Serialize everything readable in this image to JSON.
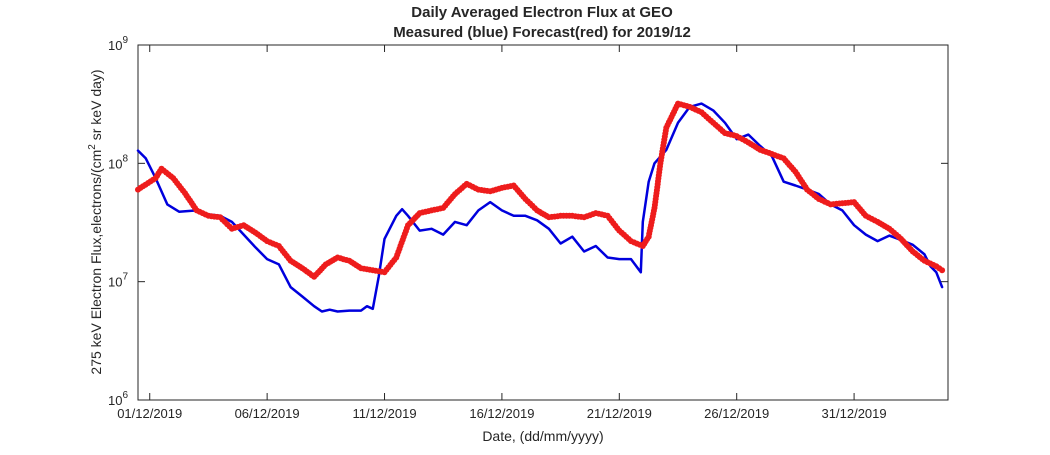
{
  "chart_data": {
    "type": "line",
    "title": "Daily Averaged Electron Flux at GEO",
    "subtitle": "Measured (blue) Forecast(red) for 2019/12",
    "xlabel": "Date, (dd/mm/yyyy)",
    "ylabel": "275 keV Electron Flux,electrons/(cm",
    "ylabel_sup": "2",
    "ylabel_tail": " sr keV day)",
    "xlim": [
      "2019-11-30T12:00",
      "2020-01-04T00:00"
    ],
    "ylim": [
      1000000,
      1000000000
    ],
    "yscale": "log",
    "grid": false,
    "x_ticks": [
      "2019-12-01",
      "2019-12-06",
      "2019-12-11",
      "2019-12-16",
      "2019-12-21",
      "2019-12-26",
      "2019-12-31"
    ],
    "x_tick_labels": [
      "01/12/2019",
      "06/12/2019",
      "11/12/2019",
      "16/12/2019",
      "21/12/2019",
      "26/12/2019",
      "31/12/2019"
    ],
    "y_ticks": [
      1000000,
      10000000,
      100000000,
      1000000000
    ],
    "y_tick_labels": [
      {
        "base": "10",
        "exp": "6"
      },
      {
        "base": "10",
        "exp": "7"
      },
      {
        "base": "10",
        "exp": "8"
      },
      {
        "base": "10",
        "exp": "9"
      }
    ],
    "series": [
      {
        "color": "#0000dd",
        "style": "line",
        "points": [
          [
            "2019-11-30T12:00",
            128000000
          ],
          [
            "2019-11-30T20:00",
            110000000
          ],
          [
            "2019-12-01T06:00",
            75000000
          ],
          [
            "2019-12-01T18:00",
            45000000
          ],
          [
            "2019-12-02T06:00",
            39000000
          ],
          [
            "2019-12-03T00:00",
            40000000
          ],
          [
            "2019-12-03T12:00",
            37000000
          ],
          [
            "2019-12-04T00:00",
            36000000
          ],
          [
            "2019-12-04T12:00",
            32000000
          ],
          [
            "2019-12-05T00:00",
            25000000
          ],
          [
            "2019-12-05T12:00",
            19500000
          ],
          [
            "2019-12-06T00:00",
            15500000
          ],
          [
            "2019-12-06T12:00",
            14000000
          ],
          [
            "2019-12-07T00:00",
            9000000
          ],
          [
            "2019-12-07T12:00",
            7500000
          ],
          [
            "2019-12-08T00:00",
            6200000
          ],
          [
            "2019-12-08T08:00",
            5600000
          ],
          [
            "2019-12-08T16:00",
            5800000
          ],
          [
            "2019-12-09T00:00",
            5600000
          ],
          [
            "2019-12-09T12:00",
            5700000
          ],
          [
            "2019-12-10T00:00",
            5700000
          ],
          [
            "2019-12-10T06:00",
            6200000
          ],
          [
            "2019-12-10T12:00",
            5900000
          ],
          [
            "2019-12-10T18:00",
            11000000
          ],
          [
            "2019-12-11T00:00",
            23000000
          ],
          [
            "2019-12-11T12:00",
            36000000
          ],
          [
            "2019-12-11T18:00",
            41000000
          ],
          [
            "2019-12-12T00:00",
            36000000
          ],
          [
            "2019-12-12T12:00",
            27000000
          ],
          [
            "2019-12-13T00:00",
            28000000
          ],
          [
            "2019-12-13T12:00",
            25000000
          ],
          [
            "2019-12-14T00:00",
            32000000
          ],
          [
            "2019-12-14T12:00",
            30000000
          ],
          [
            "2019-12-15T00:00",
            40000000
          ],
          [
            "2019-12-15T12:00",
            47000000
          ],
          [
            "2019-12-16T00:00",
            40000000
          ],
          [
            "2019-12-16T12:00",
            36000000
          ],
          [
            "2019-12-17T00:00",
            36000000
          ],
          [
            "2019-12-17T12:00",
            33000000
          ],
          [
            "2019-12-18T00:00",
            28000000
          ],
          [
            "2019-12-18T12:00",
            21000000
          ],
          [
            "2019-12-19T00:00",
            24000000
          ],
          [
            "2019-12-19T12:00",
            18000000
          ],
          [
            "2019-12-20T00:00",
            20000000
          ],
          [
            "2019-12-20T12:00",
            16000000
          ],
          [
            "2019-12-21T00:00",
            15500000
          ],
          [
            "2019-12-21T12:00",
            15500000
          ],
          [
            "2019-12-21T22:00",
            12000000
          ],
          [
            "2019-12-22T00:00",
            32000000
          ],
          [
            "2019-12-22T06:00",
            70000000
          ],
          [
            "2019-12-22T12:00",
            100000000
          ],
          [
            "2019-12-23T00:00",
            130000000
          ],
          [
            "2019-12-23T12:00",
            220000000
          ],
          [
            "2019-12-24T00:00",
            300000000
          ],
          [
            "2019-12-24T12:00",
            320000000
          ],
          [
            "2019-12-25T00:00",
            280000000
          ],
          [
            "2019-12-25T12:00",
            220000000
          ],
          [
            "2019-12-26T00:00",
            160000000
          ],
          [
            "2019-12-26T12:00",
            175000000
          ],
          [
            "2019-12-27T00:00",
            140000000
          ],
          [
            "2019-12-27T12:00",
            115000000
          ],
          [
            "2019-12-28T00:00",
            70000000
          ],
          [
            "2019-12-28T12:00",
            65000000
          ],
          [
            "2019-12-29T00:00",
            60000000
          ],
          [
            "2019-12-29T12:00",
            55000000
          ],
          [
            "2019-12-30T00:00",
            45000000
          ],
          [
            "2019-12-30T12:00",
            40000000
          ],
          [
            "2019-12-31T00:00",
            30000000
          ],
          [
            "2019-12-31T12:00",
            25000000
          ],
          [
            "2020-01-01T00:00",
            22000000
          ],
          [
            "2020-01-01T12:00",
            24500000
          ],
          [
            "2020-01-02T00:00",
            22500000
          ],
          [
            "2020-01-02T12:00",
            20500000
          ],
          [
            "2020-01-03T00:00",
            17000000
          ],
          [
            "2020-01-03T06:00",
            13500000
          ],
          [
            "2020-01-03T12:00",
            12000000
          ],
          [
            "2020-01-03T18:00",
            9000000
          ]
        ]
      },
      {
        "color": "#ee1c1c",
        "style": "dots",
        "points": [
          [
            "2019-11-30T12:00",
            60000000
          ],
          [
            "2019-12-01T06:00",
            75000000
          ],
          [
            "2019-12-01T12:00",
            90000000
          ],
          [
            "2019-12-02T00:00",
            75000000
          ],
          [
            "2019-12-02T12:00",
            56000000
          ],
          [
            "2019-12-03T00:00",
            40000000
          ],
          [
            "2019-12-03T12:00",
            36000000
          ],
          [
            "2019-12-04T00:00",
            35000000
          ],
          [
            "2019-12-04T12:00",
            28000000
          ],
          [
            "2019-12-05T00:00",
            30000000
          ],
          [
            "2019-12-05T12:00",
            26000000
          ],
          [
            "2019-12-06T00:00",
            22000000
          ],
          [
            "2019-12-06T12:00",
            20000000
          ],
          [
            "2019-12-07T00:00",
            15000000
          ],
          [
            "2019-12-07T12:00",
            13000000
          ],
          [
            "2019-12-08T00:00",
            11000000
          ],
          [
            "2019-12-08T12:00",
            14000000
          ],
          [
            "2019-12-09T00:00",
            16000000
          ],
          [
            "2019-12-09T12:00",
            15000000
          ],
          [
            "2019-12-10T00:00",
            13000000
          ],
          [
            "2019-12-10T12:00",
            12500000
          ],
          [
            "2019-12-11T00:00",
            12000000
          ],
          [
            "2019-12-11T12:00",
            16000000
          ],
          [
            "2019-12-12T00:00",
            30000000
          ],
          [
            "2019-12-12T12:00",
            38000000
          ],
          [
            "2019-12-13T00:00",
            40000000
          ],
          [
            "2019-12-13T12:00",
            42000000
          ],
          [
            "2019-12-14T00:00",
            55000000
          ],
          [
            "2019-12-14T12:00",
            67000000
          ],
          [
            "2019-12-15T00:00",
            60000000
          ],
          [
            "2019-12-15T12:00",
            58000000
          ],
          [
            "2019-12-16T00:00",
            62000000
          ],
          [
            "2019-12-16T12:00",
            65000000
          ],
          [
            "2019-12-17T00:00",
            50000000
          ],
          [
            "2019-12-17T12:00",
            40000000
          ],
          [
            "2019-12-18T00:00",
            35000000
          ],
          [
            "2019-12-18T12:00",
            36000000
          ],
          [
            "2019-12-19T00:00",
            36000000
          ],
          [
            "2019-12-19T12:00",
            35000000
          ],
          [
            "2019-12-20T00:00",
            38000000
          ],
          [
            "2019-12-20T12:00",
            36000000
          ],
          [
            "2019-12-21T00:00",
            27000000
          ],
          [
            "2019-12-21T12:00",
            22000000
          ],
          [
            "2019-12-22T00:00",
            20000000
          ],
          [
            "2019-12-22T06:00",
            24000000
          ],
          [
            "2019-12-22T12:00",
            42000000
          ],
          [
            "2019-12-22T18:00",
            100000000
          ],
          [
            "2019-12-23T00:00",
            200000000
          ],
          [
            "2019-12-23T12:00",
            320000000
          ],
          [
            "2019-12-24T00:00",
            300000000
          ],
          [
            "2019-12-24T12:00",
            270000000
          ],
          [
            "2019-12-25T00:00",
            220000000
          ],
          [
            "2019-12-25T12:00",
            180000000
          ],
          [
            "2019-12-26T00:00",
            170000000
          ],
          [
            "2019-12-26T12:00",
            150000000
          ],
          [
            "2019-12-27T00:00",
            130000000
          ],
          [
            "2019-12-27T12:00",
            120000000
          ],
          [
            "2019-12-28T00:00",
            110000000
          ],
          [
            "2019-12-28T12:00",
            85000000
          ],
          [
            "2019-12-29T00:00",
            60000000
          ],
          [
            "2019-12-29T12:00",
            50000000
          ],
          [
            "2019-12-30T00:00",
            45000000
          ],
          [
            "2019-12-30T12:00",
            46000000
          ],
          [
            "2019-12-31T00:00",
            47000000
          ],
          [
            "2019-12-31T12:00",
            36000000
          ],
          [
            "2020-01-01T00:00",
            32000000
          ],
          [
            "2020-01-01T12:00",
            28000000
          ],
          [
            "2020-01-02T00:00",
            23000000
          ],
          [
            "2020-01-02T12:00",
            18000000
          ],
          [
            "2020-01-03T00:00",
            15000000
          ],
          [
            "2020-01-03T12:00",
            13500000
          ],
          [
            "2020-01-03T18:00",
            12500000
          ]
        ]
      }
    ]
  }
}
